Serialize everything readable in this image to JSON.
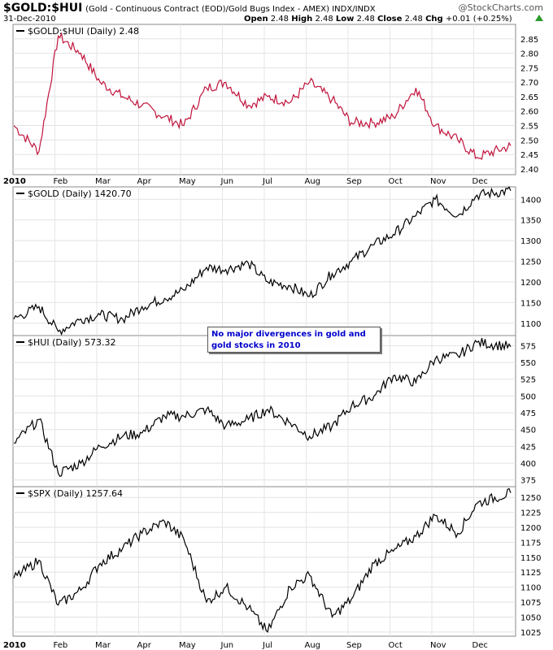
{
  "header": {
    "symbol": "$GOLD:$HUI",
    "description": "(Gold - Continuous Contract (EOD)/Gold Bugs Index - AMEX)  INDX/INDX",
    "date": "31-Dec-2010",
    "open_label": "Open",
    "open": "2.48",
    "high_label": "High",
    "high": "2.48",
    "low_label": "Low",
    "low": "2.48",
    "close_label": "Close",
    "close": "2.48",
    "chg_label": "Chg",
    "chg": "+0.01 (+0.25%)",
    "brand": "@StockCharts.com",
    "chg_color": "#2a9a2a"
  },
  "annotation": {
    "line1": "No major divergences in gold and",
    "line2": "gold stocks in 2010",
    "color": "#0000cc"
  },
  "x_axis": {
    "labels": [
      "2010",
      "Feb",
      "Mar",
      "Apr",
      "May",
      "Jun",
      "Jul",
      "Aug",
      "Sep",
      "Oct",
      "Nov",
      "Dec"
    ]
  },
  "chart_data": [
    {
      "type": "line",
      "legend": "$GOLD:$HUI (Daily) 2.48",
      "color": "#c0143c",
      "ylim": [
        2.38,
        2.9
      ],
      "yticks": [
        "2.40",
        "2.45",
        "2.50",
        "2.55",
        "2.60",
        "2.65",
        "2.70",
        "2.75",
        "2.80",
        "2.85"
      ],
      "monthly_points": [
        {
          "month": "Jan",
          "value": 2.55
        },
        {
          "month": "Jan",
          "value": 2.46
        },
        {
          "month": "Feb",
          "value": 2.86
        },
        {
          "month": "Feb",
          "value": 2.8
        },
        {
          "month": "Mar",
          "value": 2.7
        },
        {
          "month": "Mar",
          "value": 2.65
        },
        {
          "month": "Apr",
          "value": 2.62
        },
        {
          "month": "Apr",
          "value": 2.58
        },
        {
          "month": "May",
          "value": 2.55
        },
        {
          "month": "May",
          "value": 2.68
        },
        {
          "month": "Jun",
          "value": 2.7
        },
        {
          "month": "Jun",
          "value": 2.62
        },
        {
          "month": "Jul",
          "value": 2.65
        },
        {
          "month": "Jul",
          "value": 2.63
        },
        {
          "month": "Aug",
          "value": 2.7
        },
        {
          "month": "Aug",
          "value": 2.64
        },
        {
          "month": "Sep",
          "value": 2.56
        },
        {
          "month": "Sep",
          "value": 2.56
        },
        {
          "month": "Oct",
          "value": 2.58
        },
        {
          "month": "Oct",
          "value": 2.68
        },
        {
          "month": "Nov",
          "value": 2.55
        },
        {
          "month": "Nov",
          "value": 2.5
        },
        {
          "month": "Dec",
          "value": 2.44
        },
        {
          "month": "Dec",
          "value": 2.48
        }
      ],
      "last": 2.48
    },
    {
      "type": "line",
      "legend": "$GOLD (Daily) 1420.70",
      "color": "#000000",
      "ylim": [
        1070,
        1430
      ],
      "yticks": [
        "1100",
        "1150",
        "1200",
        "1250",
        "1300",
        "1350",
        "1400"
      ],
      "monthly_points": [
        {
          "month": "Jan",
          "value": 1110
        },
        {
          "month": "Jan",
          "value": 1140
        },
        {
          "month": "Feb",
          "value": 1080
        },
        {
          "month": "Feb",
          "value": 1110
        },
        {
          "month": "Mar",
          "value": 1120
        },
        {
          "month": "Mar",
          "value": 1110
        },
        {
          "month": "Apr",
          "value": 1140
        },
        {
          "month": "Apr",
          "value": 1160
        },
        {
          "month": "May",
          "value": 1180
        },
        {
          "month": "May",
          "value": 1235
        },
        {
          "month": "Jun",
          "value": 1230
        },
        {
          "month": "Jun",
          "value": 1245
        },
        {
          "month": "Jul",
          "value": 1200
        },
        {
          "month": "Jul",
          "value": 1190
        },
        {
          "month": "Aug",
          "value": 1165
        },
        {
          "month": "Aug",
          "value": 1220
        },
        {
          "month": "Sep",
          "value": 1250
        },
        {
          "month": "Sep",
          "value": 1290
        },
        {
          "month": "Oct",
          "value": 1315
        },
        {
          "month": "Oct",
          "value": 1360
        },
        {
          "month": "Nov",
          "value": 1400
        },
        {
          "month": "Nov",
          "value": 1360
        },
        {
          "month": "Dec",
          "value": 1410
        },
        {
          "month": "Dec",
          "value": 1420.7
        }
      ],
      "last": 1420.7
    },
    {
      "type": "line",
      "legend": "$HUI (Daily) 573.32",
      "color": "#000000",
      "ylim": [
        365,
        590
      ],
      "yticks": [
        "375",
        "400",
        "425",
        "450",
        "475",
        "500",
        "525",
        "550",
        "575"
      ],
      "monthly_points": [
        {
          "month": "Jan",
          "value": 430
        },
        {
          "month": "Jan",
          "value": 465
        },
        {
          "month": "Feb",
          "value": 385
        },
        {
          "month": "Feb",
          "value": 400
        },
        {
          "month": "Mar",
          "value": 425
        },
        {
          "month": "Mar",
          "value": 440
        },
        {
          "month": "Apr",
          "value": 445
        },
        {
          "month": "Apr",
          "value": 470
        },
        {
          "month": "May",
          "value": 470
        },
        {
          "month": "May",
          "value": 480
        },
        {
          "month": "Jun",
          "value": 455
        },
        {
          "month": "Jun",
          "value": 465
        },
        {
          "month": "Jul",
          "value": 480
        },
        {
          "month": "Jul",
          "value": 460
        },
        {
          "month": "Aug",
          "value": 440
        },
        {
          "month": "Aug",
          "value": 455
        },
        {
          "month": "Sep",
          "value": 485
        },
        {
          "month": "Sep",
          "value": 500
        },
        {
          "month": "Oct",
          "value": 530
        },
        {
          "month": "Oct",
          "value": 520
        },
        {
          "month": "Nov",
          "value": 555
        },
        {
          "month": "Nov",
          "value": 560
        },
        {
          "month": "Dec",
          "value": 580
        },
        {
          "month": "Dec",
          "value": 573.32
        }
      ],
      "last": 573.32
    },
    {
      "type": "line",
      "legend": "$SPX (Daily) 1257.64",
      "color": "#000000",
      "ylim": [
        1018,
        1268
      ],
      "yticks": [
        "1025",
        "1050",
        "1075",
        "1100",
        "1125",
        "1150",
        "1175",
        "1200",
        "1225",
        "1250"
      ],
      "monthly_points": [
        {
          "month": "Jan",
          "value": 1115
        },
        {
          "month": "Jan",
          "value": 1145
        },
        {
          "month": "Feb",
          "value": 1070
        },
        {
          "month": "Feb",
          "value": 1095
        },
        {
          "month": "Mar",
          "value": 1140
        },
        {
          "month": "Mar",
          "value": 1165
        },
        {
          "month": "Apr",
          "value": 1190
        },
        {
          "month": "Apr",
          "value": 1210
        },
        {
          "month": "May",
          "value": 1180
        },
        {
          "month": "May",
          "value": 1075
        },
        {
          "month": "Jun",
          "value": 1100
        },
        {
          "month": "Jun",
          "value": 1065
        },
        {
          "month": "Jul",
          "value": 1025
        },
        {
          "month": "Jul",
          "value": 1100
        },
        {
          "month": "Aug",
          "value": 1120
        },
        {
          "month": "Aug",
          "value": 1050
        },
        {
          "month": "Sep",
          "value": 1080
        },
        {
          "month": "Sep",
          "value": 1140
        },
        {
          "month": "Oct",
          "value": 1160
        },
        {
          "month": "Oct",
          "value": 1185
        },
        {
          "month": "Nov",
          "value": 1220
        },
        {
          "month": "Nov",
          "value": 1190
        },
        {
          "month": "Dec",
          "value": 1240
        },
        {
          "month": "Dec",
          "value": 1257.64
        }
      ],
      "last": 1257.64
    }
  ]
}
